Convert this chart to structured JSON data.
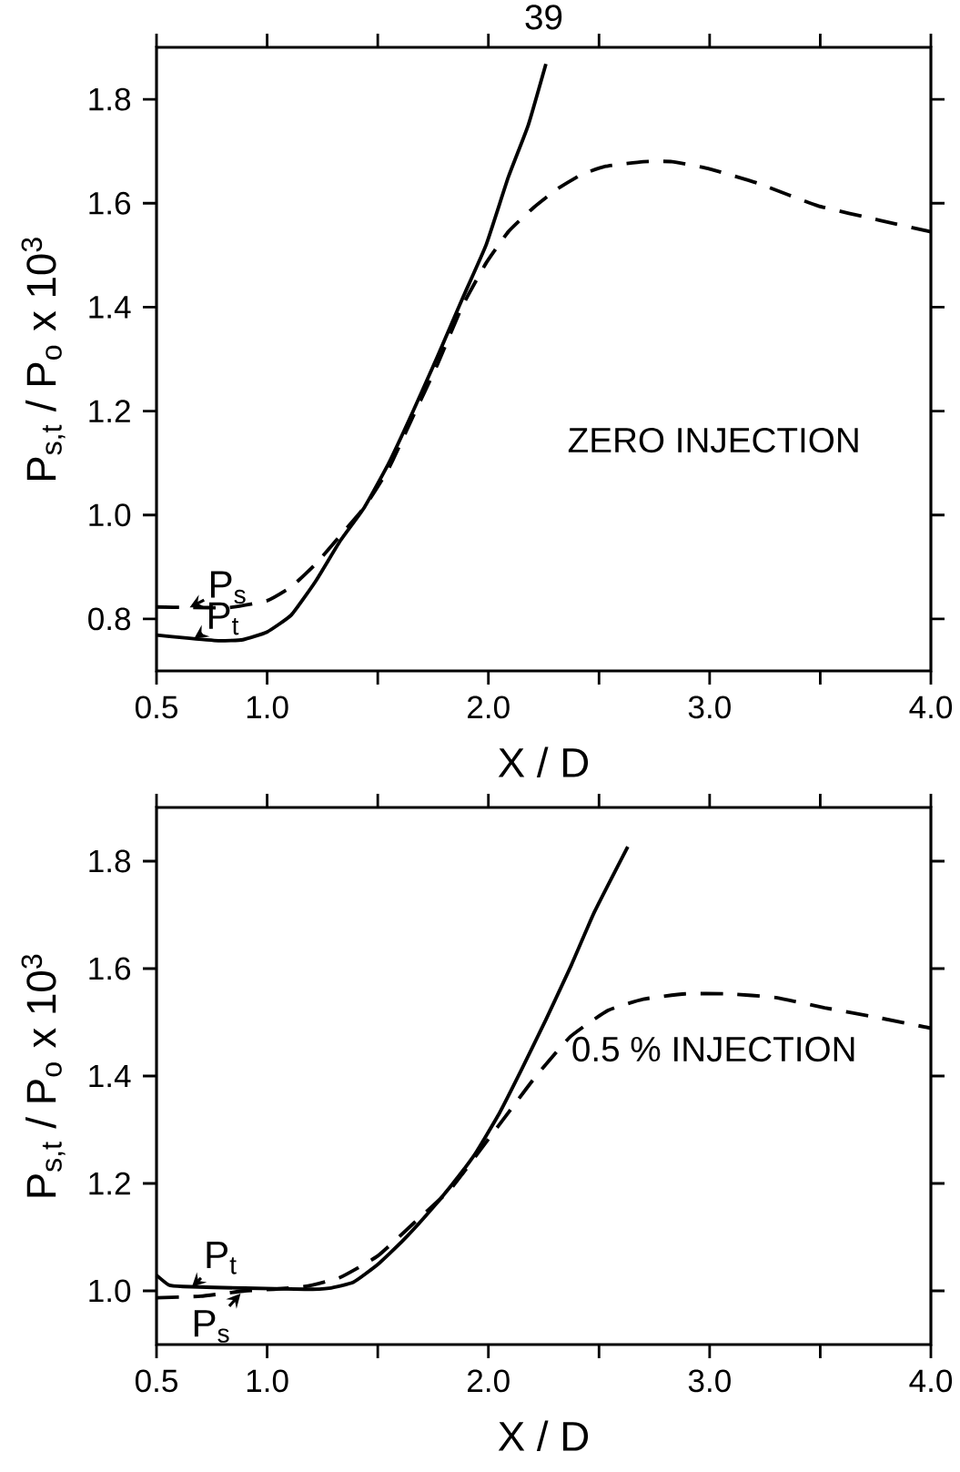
{
  "chart_data": [
    {
      "type": "line",
      "title": "39",
      "xlabel": "X / D",
      "ylabel": "P$_{s,t}$ / P$_{o}$ x 10$^{3}$",
      "xlim": [
        0.5,
        4.0
      ],
      "ylim": [
        0.7,
        1.9
      ],
      "xticks": [
        0.5,
        {
          "value": 1.0,
          "label": "1.0"
        },
        {
          "value": 1.5,
          "label": null
        },
        {
          "value": 2.0,
          "label": "2.0"
        },
        {
          "value": 2.5,
          "label": null
        },
        {
          "value": 3.0,
          "label": "3.0"
        },
        {
          "value": 3.5,
          "label": null
        },
        {
          "value": 4.0,
          "label": "4.0"
        }
      ],
      "yticks": [
        0.8,
        {
          "value": 1.0,
          "label": "1.0"
        },
        1.2,
        1.4,
        1.6,
        1.8
      ],
      "series": [
        {
          "color": "#000000",
          "line_style": "solid",
          "x": [
            0.5,
            0.615,
            0.78,
            0.89,
            1.0,
            1.11,
            1.22,
            1.33,
            1.44,
            1.55,
            1.66,
            1.77,
            1.88,
            1.99,
            2.09,
            2.18,
            2.26
          ],
          "values": [
            0.769,
            0.764,
            0.758,
            0.76,
            0.775,
            0.808,
            0.873,
            0.95,
            1.015,
            1.1,
            1.2,
            1.305,
            1.414,
            1.52,
            1.65,
            1.75,
            1.868
          ]
        },
        {
          "color": "#000000",
          "line_style": "dashed",
          "x": [
            0.5,
            0.65,
            0.83,
            1.0,
            1.11,
            1.22,
            1.33,
            1.44,
            1.55,
            1.66,
            1.77,
            1.88,
            1.99,
            2.09,
            2.2,
            2.31,
            2.42,
            2.53,
            2.7,
            2.83,
            3.0,
            3.22,
            3.49,
            3.77,
            4.0
          ],
          "values": [
            0.823,
            0.822,
            0.822,
            0.835,
            0.862,
            0.906,
            0.96,
            1.015,
            1.09,
            1.19,
            1.29,
            1.4,
            1.485,
            1.545,
            1.59,
            1.627,
            1.655,
            1.671,
            1.68,
            1.68,
            1.666,
            1.638,
            1.595,
            1.567,
            1.545
          ]
        }
      ],
      "annotations": [
        {
          "text": "P$_{s}$",
          "x": 0.65,
          "y": 0.822
        },
        {
          "text": "P$_{t}$",
          "x": 0.67,
          "y": 0.762
        },
        "ZERO INJECTION"
      ]
    },
    {
      "type": "line",
      "xlabel": "X / D",
      "ylabel": "P$_{s,t}$ / P$_{o}$ x 10$^{3}$",
      "xlim": [
        0.5,
        4.0
      ],
      "ylim": [
        0.9,
        1.9
      ],
      "xticks": [
        0.5,
        {
          "value": 1.0,
          "label": "1.0"
        },
        {
          "value": 1.5,
          "label": null
        },
        {
          "value": 2.0,
          "label": "2.0"
        },
        {
          "value": 2.5,
          "label": null
        },
        {
          "value": 3.0,
          "label": "3.0"
        },
        {
          "value": 3.5,
          "label": null
        },
        {
          "value": 4.0,
          "label": "4.0"
        }
      ],
      "yticks": [
        {
          "value": 1.0,
          "label": "1.0"
        },
        1.2,
        1.4,
        1.6,
        1.8
      ],
      "series": [
        {
          "color": "#000000",
          "line_style": "solid",
          "x": [
            0.5,
            0.555,
            0.62,
            0.9,
            1.17,
            1.28,
            1.39,
            1.5,
            1.61,
            1.72,
            1.83,
            1.94,
            2.05,
            2.15,
            2.26,
            2.37,
            2.48,
            2.63
          ],
          "values": [
            1.029,
            1.011,
            1.008,
            1.005,
            1.003,
            1.005,
            1.016,
            1.049,
            1.092,
            1.141,
            1.195,
            1.255,
            1.331,
            1.412,
            1.505,
            1.602,
            1.706,
            1.827
          ]
        },
        {
          "color": "#000000",
          "line_style": "dashed",
          "x": [
            0.5,
            0.7,
            0.9,
            1.03,
            1.17,
            1.33,
            1.5,
            1.66,
            1.83,
            1.99,
            2.1,
            2.21,
            2.37,
            2.54,
            2.7,
            2.89,
            3.08,
            3.3,
            3.52,
            3.77,
            4.0
          ],
          "values": [
            0.987,
            0.99,
            1.0,
            1.003,
            1.008,
            1.025,
            1.065,
            1.125,
            1.19,
            1.277,
            1.337,
            1.397,
            1.473,
            1.522,
            1.543,
            1.553,
            1.553,
            1.546,
            1.527,
            1.508,
            1.489
          ]
        }
      ],
      "annotations": [
        {
          "text": "P$_{t}$",
          "x": 0.66,
          "y": 1.007
        },
        {
          "text": "P$_{s}$",
          "x": 0.88,
          "y": 0.995
        },
        "0.5 % INJECTION"
      ]
    }
  ]
}
